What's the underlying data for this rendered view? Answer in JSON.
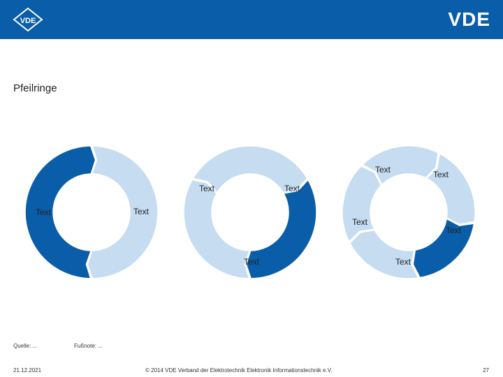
{
  "header": {
    "left_logo_text": "VDE",
    "right_logo_text": "VDE"
  },
  "title": "Pfeilringe",
  "diagrams": {
    "ring1": {
      "segments": 2,
      "highlighted": 1,
      "labels": [
        "Text",
        "Text"
      ]
    },
    "ring2": {
      "segments": 3,
      "highlighted": 1,
      "labels": [
        "Text",
        "Text",
        "Text"
      ]
    },
    "ring3": {
      "segments": 5,
      "highlighted": 1,
      "labels": [
        "Text",
        "Text",
        "Text",
        "Text",
        "Text"
      ]
    }
  },
  "colors": {
    "brand": "#0a5da8",
    "segment_light": "#c5dcf1",
    "segment_dark": "#0a5da8"
  },
  "footer": {
    "source": "Quelle: ...",
    "footnote": "Fußnote: ...",
    "date": "21.12.2021",
    "copyright": "© 2014 VDE Verband der Elektrotechnik Elektronik Informationstechnik e.V.",
    "page": "27"
  }
}
